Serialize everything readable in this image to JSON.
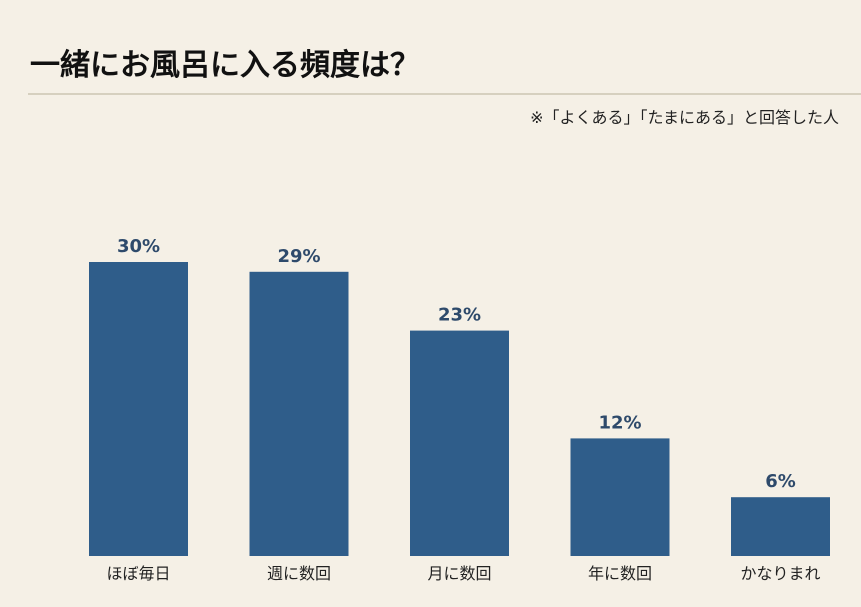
{
  "title": "一緒にお風呂に入る頻度は？",
  "note": "※「よくある」「たまにある」と回答した人",
  "colors": {
    "bar": "#2f5d8a",
    "label": "#2e4a6b",
    "background": "#f5f0e6"
  },
  "chart_data": {
    "type": "bar",
    "categories": [
      "ほぼ毎日",
      "週に数回",
      "月に数回",
      "年に数回",
      "かなりまれ"
    ],
    "values": [
      30,
      29,
      23,
      12,
      6
    ],
    "value_labels": [
      "30%",
      "29%",
      "23%",
      "12%",
      "6%"
    ],
    "title": "一緒にお風呂に入る頻度は？",
    "xlabel": "",
    "ylabel": "",
    "ylim": [
      0,
      30
    ],
    "grid": false,
    "legend": "none"
  }
}
